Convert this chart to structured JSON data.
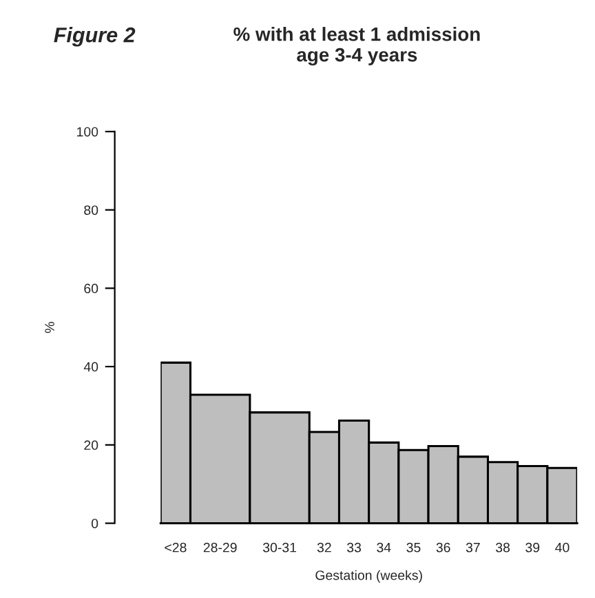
{
  "chart_data": {
    "type": "histogram",
    "title": "% with at least 1 admission\nage 3-4 years",
    "annotations": [
      "Figure 2"
    ],
    "xlabel": "Gestation (weeks)",
    "ylabel": "%",
    "bins": [
      26.5,
      27.5,
      29.5,
      31.5,
      32.5,
      33.5,
      34.5,
      35.5,
      36.5,
      37.5,
      38.5,
      39.5,
      40.5
    ],
    "values": [
      41.0,
      32.8,
      28.3,
      23.3,
      26.2,
      20.6,
      18.7,
      19.7,
      17.0,
      15.6,
      14.6,
      14.1
    ],
    "color": "#bebebe",
    "xticks": [
      {
        "value": 27,
        "label": "<28"
      },
      {
        "value": 28.5,
        "label": "28-29"
      },
      {
        "value": 30.5,
        "label": "30-31"
      },
      32,
      33,
      34,
      35,
      36,
      37,
      38,
      39,
      40
    ],
    "xlim": [
      26.5,
      40.5
    ],
    "ylim": [
      0,
      100
    ],
    "yticks": [
      0,
      20,
      40,
      60,
      80,
      100
    ],
    "grid": false
  }
}
